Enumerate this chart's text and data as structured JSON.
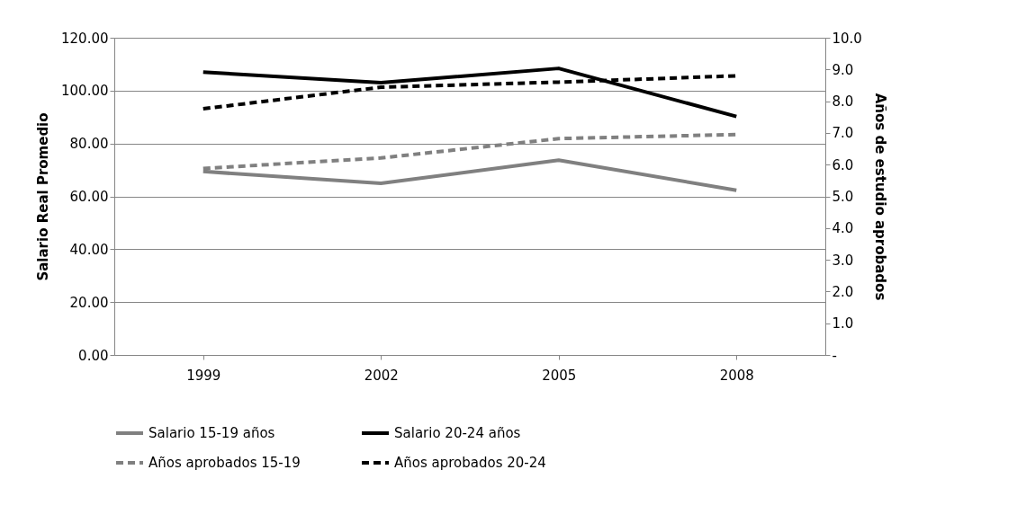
{
  "chart_data": {
    "type": "line",
    "ylabel": "Salario Real Promedio",
    "y2label": "Años de estudio aprobados",
    "categories": [
      "1999",
      "2002",
      "2005",
      "2008"
    ],
    "series": [
      {
        "name": "Salario 15-19 años",
        "color": "#808080",
        "line_style": "solid",
        "axis": "y",
        "values": [
          69.4,
          64.9,
          73.7,
          62.3
        ]
      },
      {
        "name": "Salario 20-24 años",
        "color": "#000000",
        "line_style": "solid",
        "axis": "y",
        "values": [
          107.0,
          103.0,
          108.4,
          90.2
        ]
      },
      {
        "name": "Años aprobados 15-19",
        "color": "#808080",
        "line_style": "dashed",
        "axis": "y2",
        "values": [
          5.88,
          6.21,
          6.82,
          6.95
        ]
      },
      {
        "name": "Años aprobados 20-24",
        "color": "#000000",
        "line_style": "dashed",
        "axis": "y2",
        "values": [
          7.76,
          8.44,
          8.6,
          8.8
        ]
      }
    ],
    "ylim": [
      0,
      120
    ],
    "yticks": [
      {
        "value": 0,
        "label": "0.00"
      },
      {
        "value": 20,
        "label": "20.00"
      },
      {
        "value": 40,
        "label": "40.00"
      },
      {
        "value": 60,
        "label": "60.00"
      },
      {
        "value": 80,
        "label": "80.00"
      },
      {
        "value": 100,
        "label": "100.00"
      },
      {
        "value": 120,
        "label": "120.00"
      }
    ],
    "y2lim": [
      0,
      10
    ],
    "y2ticks": [
      {
        "value": 0,
        "label": "-"
      },
      {
        "value": 1,
        "label": "1.0"
      },
      {
        "value": 2,
        "label": "2.0"
      },
      {
        "value": 3,
        "label": "3.0"
      },
      {
        "value": 4,
        "label": "4.0"
      },
      {
        "value": 5,
        "label": "5.0"
      },
      {
        "value": 6,
        "label": "6.0"
      },
      {
        "value": 7,
        "label": "7.0"
      },
      {
        "value": 8,
        "label": "8.0"
      },
      {
        "value": 9,
        "label": "9.0"
      },
      {
        "value": 10,
        "label": "10.0"
      }
    ],
    "grid": "y",
    "legend": "bottom",
    "marker": "none"
  }
}
